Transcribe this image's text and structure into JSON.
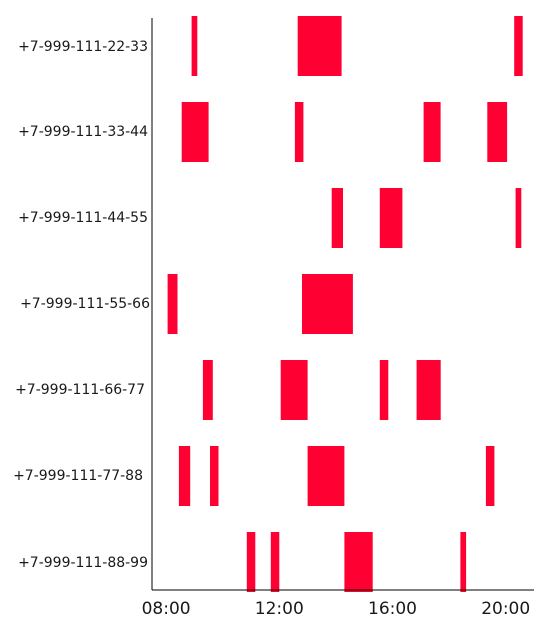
{
  "chart_data": {
    "type": "timeline",
    "bar_color": "#ff0033",
    "x_axis": {
      "unit": "hours",
      "min": 7.5,
      "max": 21.0,
      "ticks": [
        {
          "value": 8,
          "label": "08:00"
        },
        {
          "value": 12,
          "label": "12:00"
        },
        {
          "value": 16,
          "label": "16:00"
        },
        {
          "value": 20,
          "label": "20:00"
        }
      ]
    },
    "categories": [
      "+7-999-111-22-33",
      "+7-999-111-33-44",
      "+7-999-111-44-55",
      "+7-999-111-55-66",
      "+7-999-111-66-77",
      "+7-999-111-77-88",
      "+7-999-111-88-99"
    ],
    "intervals": [
      [
        [
          8.9,
          9.1
        ],
        [
          12.65,
          14.2
        ],
        [
          20.3,
          20.6
        ]
      ],
      [
        [
          8.55,
          9.5
        ],
        [
          12.55,
          12.85
        ],
        [
          17.1,
          17.7
        ],
        [
          19.35,
          20.05
        ]
      ],
      [
        [
          13.85,
          14.25
        ],
        [
          15.55,
          16.35
        ],
        [
          20.35,
          20.55
        ]
      ],
      [
        [
          8.05,
          8.4
        ],
        [
          12.8,
          14.6
        ]
      ],
      [
        [
          9.3,
          9.65
        ],
        [
          12.05,
          13.0
        ],
        [
          15.55,
          15.85
        ],
        [
          16.85,
          17.7
        ]
      ],
      [
        [
          8.45,
          8.85
        ],
        [
          9.55,
          9.85
        ],
        [
          13.0,
          14.3
        ],
        [
          19.3,
          19.6
        ]
      ],
      [
        [
          10.85,
          11.15
        ],
        [
          11.7,
          12.0
        ],
        [
          14.3,
          15.3
        ],
        [
          18.4,
          18.6
        ]
      ]
    ]
  }
}
